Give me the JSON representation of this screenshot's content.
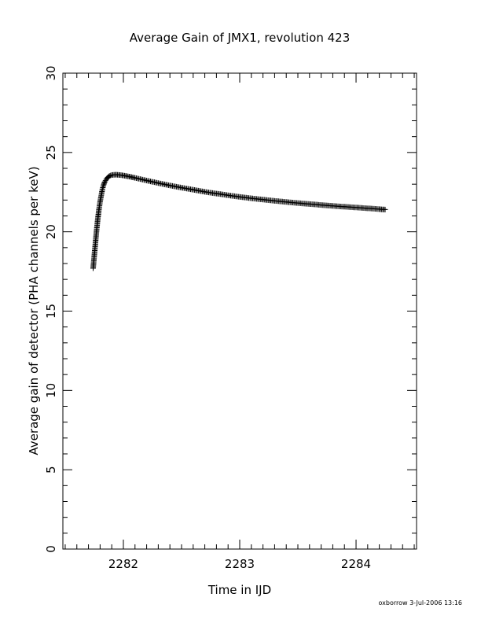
{
  "chart_data": {
    "type": "scatter",
    "marker": "plus",
    "title": "Average Gain of JMX1, revolution 423",
    "xlabel": "Time in IJD",
    "ylabel": "Average gain of detector (PHA channels per keV)",
    "xlim": [
      2281.48,
      2284.52
    ],
    "ylim": [
      0,
      30
    ],
    "xticks": [
      "2282",
      "2283",
      "2284"
    ],
    "yticks": [
      "0",
      "5",
      "10",
      "15",
      "20",
      "25",
      "30"
    ],
    "grid": false,
    "legend": "none",
    "series": [
      {
        "x": [
          2281.74,
          2281.75,
          2281.76,
          2281.77,
          2281.78,
          2281.79,
          2281.8,
          2281.81,
          2281.82,
          2281.83,
          2281.84,
          2281.86,
          2281.88,
          2281.9,
          2281.93,
          2281.97,
          2282.0,
          2282.05,
          2282.1,
          2282.2,
          2282.3,
          2282.4,
          2282.5,
          2282.6,
          2282.7,
          2282.8,
          2282.9,
          2283.0,
          2283.1,
          2283.2,
          2283.3,
          2283.4,
          2283.5,
          2283.6,
          2283.7,
          2283.8,
          2283.9,
          2284.0,
          2284.1,
          2284.2,
          2284.25
        ],
        "y": [
          17.7,
          18.5,
          19.3,
          20.1,
          20.8,
          21.4,
          21.9,
          22.3,
          22.7,
          22.95,
          23.15,
          23.38,
          23.52,
          23.58,
          23.6,
          23.58,
          23.55,
          23.48,
          23.4,
          23.23,
          23.07,
          22.92,
          22.78,
          22.65,
          22.52,
          22.41,
          22.3,
          22.2,
          22.11,
          22.03,
          21.95,
          21.88,
          21.81,
          21.75,
          21.69,
          21.63,
          21.58,
          21.53,
          21.48,
          21.43,
          21.4
        ]
      }
    ]
  },
  "footer": "oxborrow  3-Jul-2006 13:16"
}
